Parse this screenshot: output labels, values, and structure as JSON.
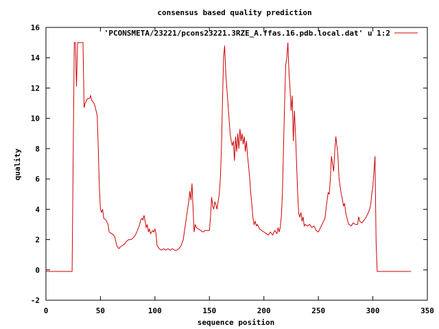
{
  "chart_data": {
    "type": "line",
    "title": "consensus based quality prediction",
    "xlabel": "sequence position",
    "ylabel": "quality",
    "xlim": [
      0,
      350
    ],
    "ylim": [
      -2,
      16
    ],
    "xticks": [
      0,
      50,
      100,
      150,
      200,
      250,
      300,
      350
    ],
    "yticks": [
      -2,
      0,
      2,
      4,
      6,
      8,
      10,
      12,
      14,
      16
    ],
    "grid": false,
    "legend_position": "top-right",
    "series": [
      {
        "name": "'PCONSMETA/23221/pcons23221.3RZE_A.ffas.16.pdb.local.dat' u 1:2",
        "color": "#cc0000",
        "points": [
          [
            0,
            -0.1
          ],
          [
            24,
            -0.1
          ],
          [
            25,
            7.5
          ],
          [
            26,
            15
          ],
          [
            27,
            15
          ],
          [
            28,
            12.1
          ],
          [
            29,
            15
          ],
          [
            30,
            15
          ],
          [
            33,
            15
          ],
          [
            34,
            15
          ],
          [
            35,
            10.7
          ],
          [
            36,
            11
          ],
          [
            38,
            11.3
          ],
          [
            40,
            11.3
          ],
          [
            41,
            11.5
          ],
          [
            42,
            11.2
          ],
          [
            43,
            11.1
          ],
          [
            44,
            11
          ],
          [
            45,
            10.8
          ],
          [
            46,
            10.5
          ],
          [
            47,
            10.2
          ],
          [
            48,
            8
          ],
          [
            49,
            5.5
          ],
          [
            50,
            4
          ],
          [
            51,
            3.8
          ],
          [
            52,
            4
          ],
          [
            53,
            3.4
          ],
          [
            55,
            3.3
          ],
          [
            57,
            3
          ],
          [
            58,
            2.5
          ],
          [
            60,
            2.4
          ],
          [
            62,
            2.3
          ],
          [
            63,
            2.2
          ],
          [
            64,
            1.9
          ],
          [
            65,
            1.6
          ],
          [
            66,
            1.5
          ],
          [
            67,
            1.4
          ],
          [
            68,
            1.5
          ],
          [
            70,
            1.6
          ],
          [
            72,
            1.7
          ],
          [
            74,
            1.9
          ],
          [
            76,
            2
          ],
          [
            78,
            2
          ],
          [
            80,
            2.1
          ],
          [
            82,
            2.3
          ],
          [
            84,
            2.6
          ],
          [
            86,
            3
          ],
          [
            87,
            3.3
          ],
          [
            88,
            3.4
          ],
          [
            89,
            3.3
          ],
          [
            90,
            3.6
          ],
          [
            91,
            3.2
          ],
          [
            92,
            2.8
          ],
          [
            93,
            3
          ],
          [
            94,
            2.5
          ],
          [
            95,
            2.7
          ],
          [
            96,
            2.4
          ],
          [
            97,
            2.5
          ],
          [
            98,
            2.6
          ],
          [
            99,
            2.5
          ],
          [
            100,
            2.7
          ],
          [
            101,
            2.4
          ],
          [
            102,
            1.6
          ],
          [
            103,
            1.5
          ],
          [
            104,
            1.4
          ],
          [
            106,
            1.3
          ],
          [
            108,
            1.4
          ],
          [
            110,
            1.3
          ],
          [
            112,
            1.4
          ],
          [
            114,
            1.3
          ],
          [
            116,
            1.4
          ],
          [
            118,
            1.3
          ],
          [
            120,
            1.3
          ],
          [
            122,
            1.4
          ],
          [
            124,
            1.6
          ],
          [
            126,
            2
          ],
          [
            127,
            2.5
          ],
          [
            128,
            3
          ],
          [
            129,
            3.5
          ],
          [
            130,
            4
          ],
          [
            131,
            4.5
          ],
          [
            132,
            5.2
          ],
          [
            133,
            4.6
          ],
          [
            134,
            5.7
          ],
          [
            135,
            4
          ],
          [
            136,
            2.5
          ],
          [
            137,
            3
          ],
          [
            138,
            2.8
          ],
          [
            140,
            2.7
          ],
          [
            142,
            2.6
          ],
          [
            144,
            2.5
          ],
          [
            146,
            2.6
          ],
          [
            148,
            2.6
          ],
          [
            150,
            2.6
          ],
          [
            151,
            3.5
          ],
          [
            152,
            4.8
          ],
          [
            153,
            4.2
          ],
          [
            154,
            4
          ],
          [
            155,
            4.5
          ],
          [
            156,
            4.3
          ],
          [
            157,
            4
          ],
          [
            158,
            4.5
          ],
          [
            159,
            5
          ],
          [
            160,
            6
          ],
          [
            161,
            8
          ],
          [
            162,
            11
          ],
          [
            163,
            14
          ],
          [
            164,
            14.8
          ],
          [
            165,
            13
          ],
          [
            166,
            12
          ],
          [
            167,
            11
          ],
          [
            168,
            10
          ],
          [
            169,
            9
          ],
          [
            170,
            8.5
          ],
          [
            171,
            8.2
          ],
          [
            172,
            8.5
          ],
          [
            173,
            7.2
          ],
          [
            174,
            8.8
          ],
          [
            175,
            7.8
          ],
          [
            176,
            9
          ],
          [
            177,
            8
          ],
          [
            178,
            9.3
          ],
          [
            179,
            8.5
          ],
          [
            180,
            9
          ],
          [
            181,
            8.3
          ],
          [
            182,
            8.8
          ],
          [
            183,
            7.8
          ],
          [
            184,
            8.5
          ],
          [
            185,
            7.5
          ],
          [
            186,
            6.8
          ],
          [
            187,
            6
          ],
          [
            188,
            5
          ],
          [
            189,
            4.3
          ],
          [
            190,
            3.4
          ],
          [
            191,
            3
          ],
          [
            192,
            3.2
          ],
          [
            193,
            2.9
          ],
          [
            194,
            3
          ],
          [
            196,
            2.7
          ],
          [
            198,
            2.6
          ],
          [
            200,
            2.5
          ],
          [
            202,
            2.4
          ],
          [
            204,
            2.3
          ],
          [
            206,
            2.5
          ],
          [
            208,
            2.3
          ],
          [
            210,
            2.6
          ],
          [
            212,
            2.4
          ],
          [
            213,
            2.8
          ],
          [
            214,
            2.5
          ],
          [
            215,
            2.8
          ],
          [
            216,
            3.5
          ],
          [
            217,
            5
          ],
          [
            218,
            8
          ],
          [
            219,
            11
          ],
          [
            220,
            13.5
          ],
          [
            221,
            14
          ],
          [
            222,
            15
          ],
          [
            223,
            13
          ],
          [
            224,
            12
          ],
          [
            225,
            10.5
          ],
          [
            226,
            11.5
          ],
          [
            227,
            8.5
          ],
          [
            228,
            10.5
          ],
          [
            229,
            9
          ],
          [
            230,
            7
          ],
          [
            231,
            5
          ],
          [
            232,
            3.7
          ],
          [
            233,
            3.5
          ],
          [
            234,
            3.8
          ],
          [
            235,
            3.2
          ],
          [
            236,
            3.5
          ],
          [
            237,
            2.9
          ],
          [
            238,
            3
          ],
          [
            240,
            2.9
          ],
          [
            242,
            3
          ],
          [
            244,
            2.8
          ],
          [
            246,
            2.9
          ],
          [
            248,
            2.6
          ],
          [
            250,
            2.5
          ],
          [
            252,
            2.8
          ],
          [
            254,
            3.1
          ],
          [
            256,
            3.4
          ],
          [
            257,
            4
          ],
          [
            258,
            4.6
          ],
          [
            259,
            5.1
          ],
          [
            260,
            5
          ],
          [
            261,
            6
          ],
          [
            262,
            7.5
          ],
          [
            263,
            7
          ],
          [
            264,
            6.5
          ],
          [
            265,
            7.8
          ],
          [
            266,
            8.8
          ],
          [
            267,
            8.2
          ],
          [
            268,
            7.5
          ],
          [
            269,
            6
          ],
          [
            270,
            5.5
          ],
          [
            271,
            5
          ],
          [
            272,
            4.7
          ],
          [
            273,
            4.2
          ],
          [
            274,
            4.4
          ],
          [
            275,
            3.8
          ],
          [
            276,
            3.5
          ],
          [
            277,
            3.2
          ],
          [
            278,
            3
          ],
          [
            280,
            2.9
          ],
          [
            282,
            3.1
          ],
          [
            284,
            3
          ],
          [
            286,
            3
          ],
          [
            287,
            3.5
          ],
          [
            288,
            3.2
          ],
          [
            290,
            3.1
          ],
          [
            292,
            3.3
          ],
          [
            294,
            3.5
          ],
          [
            296,
            3.8
          ],
          [
            297,
            4
          ],
          [
            298,
            4.3
          ],
          [
            299,
            5
          ],
          [
            300,
            5.5
          ],
          [
            301,
            6.5
          ],
          [
            302,
            7.5
          ],
          [
            303,
            1.8
          ],
          [
            304,
            -0.1
          ],
          [
            335,
            -0.1
          ]
        ]
      }
    ]
  }
}
